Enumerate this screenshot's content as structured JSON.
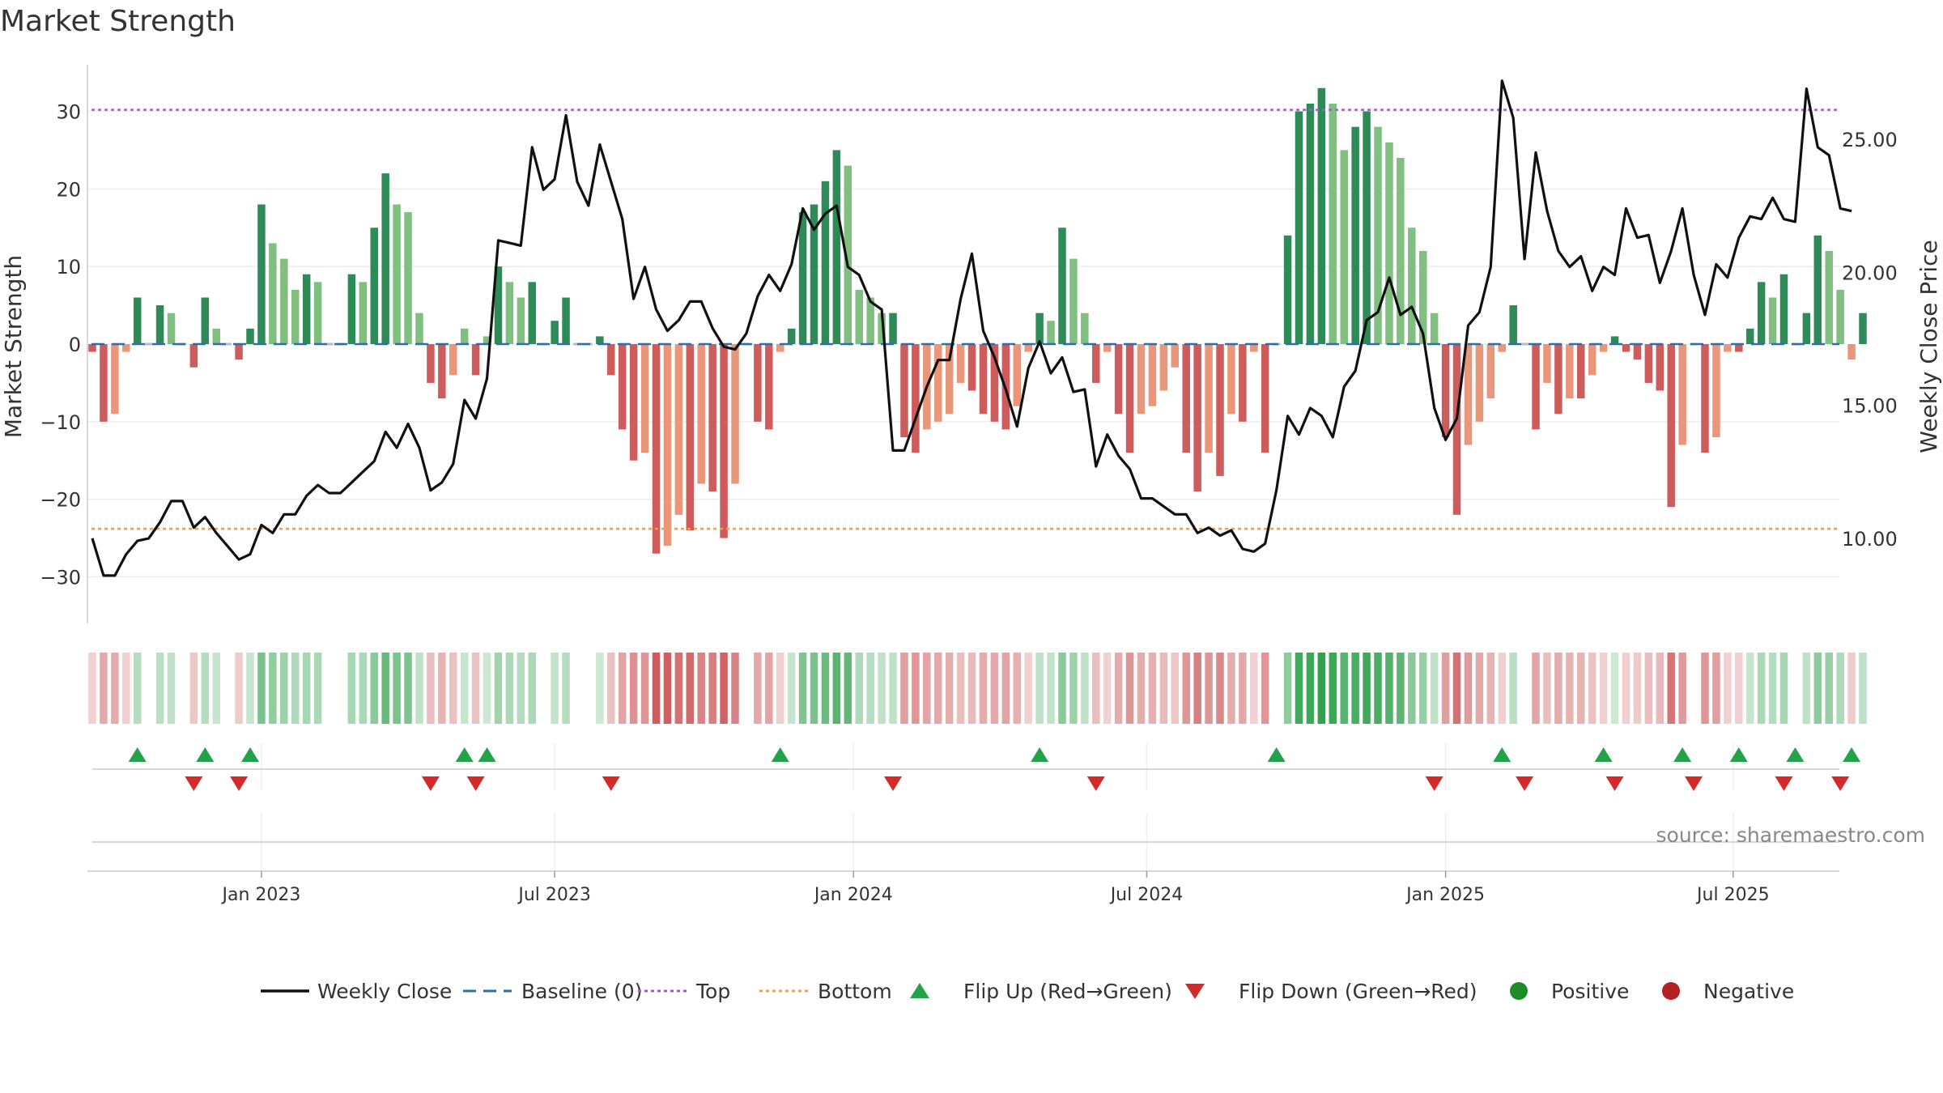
{
  "chart_data": {
    "type": "bar",
    "title": "Market Strength",
    "ylabel_left": "Market Strength",
    "ylabel_right": "Weekly Close Price",
    "ylim_left": [
      -36,
      36
    ],
    "ylim_right": [
      6.8,
      27.8
    ],
    "left_ticks": [
      30,
      20,
      10,
      0,
      -10,
      -20,
      -30
    ],
    "left_tick_labels": [
      "30",
      "20",
      "10",
      "0",
      "−10",
      "−20",
      "−30"
    ],
    "right_ticks": [
      25,
      20,
      15,
      10
    ],
    "right_tick_labels": [
      "25.00",
      "20.00",
      "15.00",
      "10.00"
    ],
    "top_line": 30.2,
    "bottom_line": -23.8,
    "x_tick_labels": [
      "Jan 2023",
      "Jul 2023",
      "Jan 2024",
      "Jul 2024",
      "Jan 2025",
      "Jul 2025"
    ],
    "x_tick_weeks": [
      15,
      41,
      67.5,
      93.5,
      120,
      145.5
    ],
    "strength": [
      -1,
      -10,
      -9,
      -1,
      6,
      0,
      5,
      4,
      0,
      -3,
      6,
      2,
      0,
      -2,
      2,
      18,
      13,
      11,
      7,
      9,
      8,
      0,
      0,
      9,
      8,
      15,
      22,
      18,
      17,
      4,
      -5,
      -7,
      -4,
      2,
      -4,
      1,
      10,
      8,
      6,
      8,
      0,
      3,
      6,
      0,
      0,
      1,
      -4,
      -11,
      -15,
      -14,
      -27,
      -26,
      -22,
      -24,
      -18,
      -19,
      -25,
      -18,
      0,
      -10,
      -11,
      -1,
      2,
      17,
      18,
      21,
      25,
      23,
      7,
      6,
      4,
      4,
      -12,
      -14,
      -11,
      -10,
      -9,
      -5,
      -6,
      -9,
      -10,
      -11,
      -8,
      -1,
      4,
      3,
      15,
      11,
      4,
      -5,
      -1,
      -9,
      -14,
      -9,
      -8,
      -6,
      -3,
      -14,
      -19,
      -14,
      -17,
      -9,
      -10,
      -1,
      -14,
      0,
      14,
      30,
      31,
      33,
      31,
      25,
      28,
      30,
      28,
      26,
      24,
      15,
      12,
      4,
      -12,
      -22,
      -13,
      -10,
      -7,
      -1,
      5,
      0,
      -11,
      -5,
      -9,
      -7,
      -7,
      -4,
      -1,
      1,
      -1,
      -2,
      -5,
      -6,
      -21,
      -13,
      0,
      -14,
      -12,
      -1,
      -1,
      2,
      8,
      6,
      9,
      0,
      4,
      14,
      12,
      7,
      -2,
      4
    ],
    "weekly_close": [
      10,
      8.6,
      8.6,
      9.4,
      9.9,
      10,
      10.6,
      11.4,
      11.4,
      10.4,
      10.8,
      10.2,
      9.7,
      9.2,
      9.4,
      10.5,
      10.2,
      10.9,
      10.9,
      11.6,
      12,
      11.7,
      11.7,
      12.1,
      12.5,
      12.9,
      14,
      13.4,
      14.3,
      13.4,
      11.8,
      12.1,
      12.8,
      15.2,
      14.5,
      16,
      21.2,
      21.1,
      21,
      24.7,
      23.1,
      23.5,
      25.9,
      23.4,
      22.5,
      24.8,
      23.4,
      22,
      19,
      20.2,
      18.6,
      17.8,
      18.2,
      18.9,
      18.9,
      17.9,
      17.2,
      17.1,
      17.7,
      19.1,
      19.9,
      19.3,
      20.3,
      22.4,
      21.6,
      22.2,
      22.5,
      20.2,
      19.9,
      18.9,
      18.6,
      13.3,
      13.3,
      14.5,
      15.7,
      16.7,
      16.7,
      19,
      20.7,
      17.8,
      16.8,
      15.6,
      14.2,
      16.4,
      17.4,
      16.2,
      16.8,
      15.5,
      15.6,
      12.7,
      13.9,
      13.1,
      12.6,
      11.5,
      11.5,
      11.2,
      10.9,
      10.9,
      10.2,
      10.4,
      10.1,
      10.3,
      9.6,
      9.5,
      9.8,
      11.8,
      14.6,
      13.9,
      14.9,
      14.6,
      13.8,
      15.7,
      16.3,
      18.2,
      18.5,
      19.8,
      18.4,
      18.7,
      17.7,
      14.9,
      13.7,
      14.5,
      18,
      18.5,
      20.2,
      27.2,
      25.8,
      20.5,
      24.5,
      22.3,
      20.8,
      20.2,
      20.6,
      19.3,
      20.2,
      19.9,
      22.4,
      21.3,
      21.4,
      19.6,
      20.8,
      22.4,
      19.9,
      18.4,
      20.3,
      19.8,
      21.3,
      22.1,
      22,
      22.8,
      22,
      21.9,
      26.9,
      24.7,
      24.4,
      22.4,
      22.3
    ],
    "flip_up_weeks": [
      4,
      10,
      14,
      33,
      35,
      61,
      84,
      105,
      125,
      134,
      141,
      146,
      151,
      156
    ],
    "flip_down_weeks": [
      9,
      13,
      30,
      34,
      46,
      71,
      89,
      119,
      127,
      135,
      142,
      150,
      155
    ],
    "source_text": "source: sharemaestro.com",
    "legend": [
      {
        "label": "Weekly Close",
        "type": "line",
        "color": "#111111"
      },
      {
        "label": "Baseline (0)",
        "type": "dash",
        "color": "#2b6ea8"
      },
      {
        "label": "Top",
        "type": "dot",
        "color": "#9a63d0"
      },
      {
        "label": "Bottom",
        "type": "dot",
        "color": "#eda050"
      },
      {
        "label": "Flip Up (Red→Green)",
        "type": "triangle-up",
        "color": "#22a34a"
      },
      {
        "label": "Flip Down (Green→Red)",
        "type": "triangle-down",
        "color": "#d42a2a"
      },
      {
        "label": "Positive",
        "type": "circle",
        "color": "#1f8c2a"
      },
      {
        "label": "Negative",
        "type": "circle",
        "color": "#b22222"
      }
    ]
  },
  "colors": {
    "positive_dark": "#2e8b57",
    "positive_light": "#80bf80",
    "negative_dark": "#cd5c5c",
    "negative_light": "#e9967a",
    "close_line": "#111111",
    "baseline": "#2b6ea8",
    "top": "#9a63d0",
    "bottom": "#eda050"
  }
}
